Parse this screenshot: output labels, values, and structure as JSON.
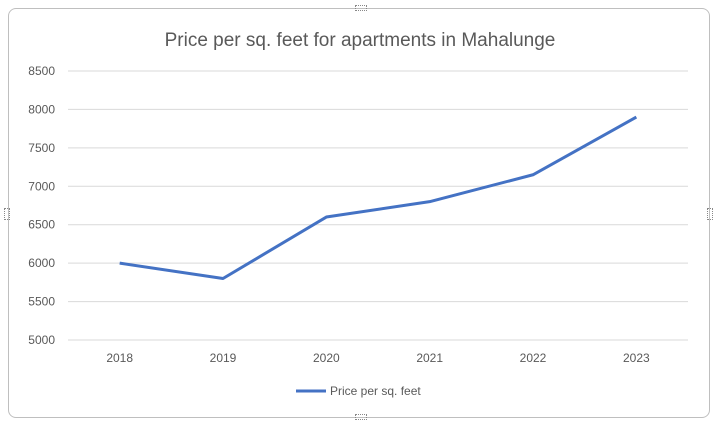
{
  "chart_data": {
    "type": "line",
    "title": "Price per sq. feet for apartments in Mahalunge",
    "xlabel": "",
    "ylabel": "",
    "categories": [
      "2018",
      "2019",
      "2020",
      "2021",
      "2022",
      "2023"
    ],
    "series": [
      {
        "name": "Price per sq. feet",
        "values": [
          6000,
          5800,
          6600,
          6800,
          7150,
          7900
        ],
        "color": "#4472c4"
      }
    ],
    "ylim": [
      5000,
      8500
    ],
    "yticks": [
      5000,
      5500,
      6000,
      6500,
      7000,
      7500,
      8000,
      8500
    ],
    "grid": true,
    "legend": "bottom"
  }
}
